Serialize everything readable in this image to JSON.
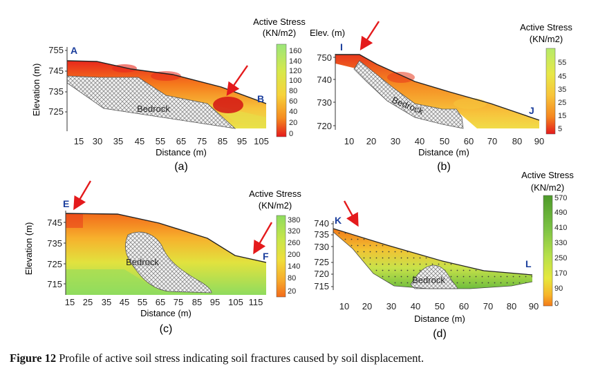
{
  "caption": {
    "label": "Figure 12",
    "text": "Profile of active soil stress indicating soil fractures caused by soil displacement."
  },
  "chart_data": [
    {
      "type": "heatmap",
      "panel": "(a)",
      "xlabel": "Distance (m)",
      "ylabel": "Elevation (m)",
      "x_ticks": [
        "15",
        "30",
        "35",
        "45",
        "55",
        "65",
        "75",
        "85",
        "95",
        "105"
      ],
      "y_ticks": [
        "755",
        "745",
        "735",
        "725"
      ],
      "start_label": "A",
      "end_label": "B",
      "region_label": "Bedrock",
      "legend": {
        "title": "Active Stress",
        "unit": "(KN/m2)",
        "ticks": [
          "160",
          "140",
          "120",
          "100",
          "80",
          "60",
          "40",
          "20",
          "0"
        ],
        "colors": [
          "#9be67a",
          "#d8e84a",
          "#f7d23a",
          "#f58a1f",
          "#e41a1c"
        ]
      }
    },
    {
      "type": "heatmap",
      "panel": "(b)",
      "xlabel": "Distance (m)",
      "ylabel": "Elev. (m)",
      "x_ticks": [
        "10",
        "20",
        "30",
        "40",
        "50",
        "60",
        "70",
        "80",
        "90"
      ],
      "y_ticks": [
        "750",
        "740",
        "730",
        "720"
      ],
      "start_label": "I",
      "end_label": "J",
      "region_label": "Bedrock",
      "legend": {
        "title": "Active Stress",
        "unit": "(KN/m2)",
        "ticks": [
          "55",
          "45",
          "35",
          "25",
          "15",
          "5"
        ],
        "colors": [
          "#b6eb6a",
          "#e8e848",
          "#f8c43a",
          "#f5861f",
          "#e41a1c"
        ]
      }
    },
    {
      "type": "heatmap",
      "panel": "(c)",
      "xlabel": "Distance (m)",
      "ylabel": "Elevation (m)",
      "x_ticks": [
        "15",
        "25",
        "35",
        "45",
        "55",
        "65",
        "75",
        "85",
        "95",
        "105",
        "115"
      ],
      "y_ticks": [
        "745",
        "735",
        "725",
        "715"
      ],
      "start_label": "E",
      "end_label": "F",
      "region_label": "Bedrock",
      "legend": {
        "title": "Active Stress",
        "unit": "(KN/m2)",
        "ticks": [
          "380",
          "320",
          "260",
          "200",
          "140",
          "80",
          "20"
        ],
        "colors": [
          "#8fdc5e",
          "#c9e64a",
          "#f0de3c",
          "#f7a92c",
          "#f26a1a"
        ]
      }
    },
    {
      "type": "heatmap",
      "panel": "(d)",
      "xlabel": "Distance (m)",
      "ylabel": "",
      "x_ticks": [
        "10",
        "20",
        "30",
        "40",
        "50",
        "60",
        "70",
        "80",
        "90"
      ],
      "y_ticks": [
        "740",
        "735",
        "730",
        "725",
        "720",
        "715"
      ],
      "start_label": "K",
      "end_label": "L",
      "region_label": "Bedrock",
      "legend": {
        "title": "Active Stress",
        "unit": "(KN/m2)",
        "ticks": [
          "570",
          "490",
          "410",
          "330",
          "250",
          "170",
          "90",
          "0"
        ],
        "colors": [
          "#4e9a2a",
          "#7cc244",
          "#b7e04a",
          "#e6e83e",
          "#f7b52a",
          "#f27a1a"
        ]
      }
    }
  ]
}
